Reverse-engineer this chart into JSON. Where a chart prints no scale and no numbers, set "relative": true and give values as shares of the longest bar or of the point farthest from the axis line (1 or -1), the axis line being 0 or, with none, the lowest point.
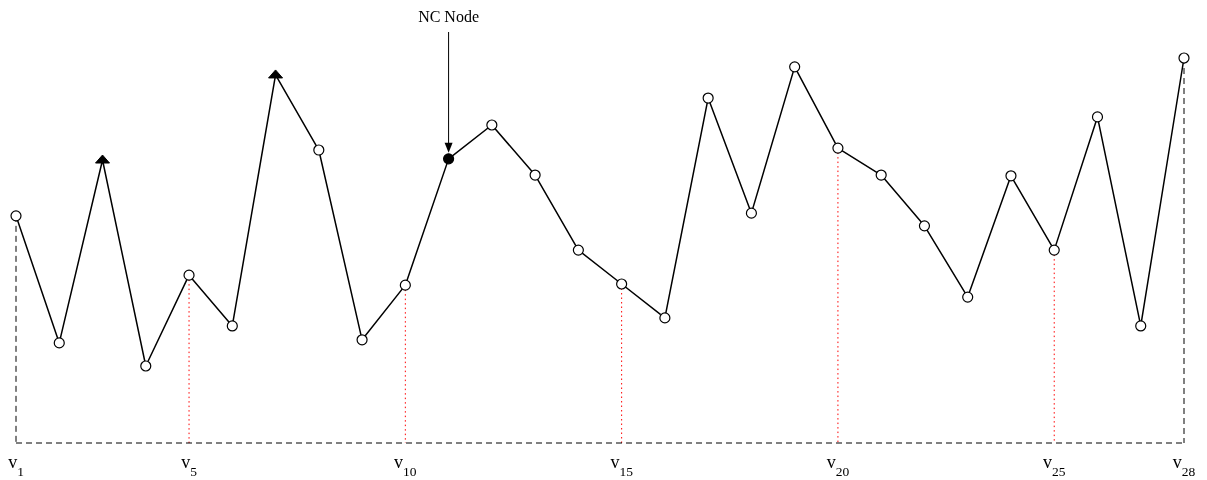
{
  "chart_data": {
    "type": "line",
    "relative": true,
    "categories": [
      "v$_{1}$",
      null,
      null,
      null,
      "v$_{5}$",
      null,
      null,
      null,
      null,
      "v$_{10}$",
      null,
      null,
      null,
      null,
      "v$_{15}$",
      null,
      null,
      null,
      null,
      "v$_{20}$",
      null,
      null,
      null,
      null,
      "v$_{25}$",
      null,
      null,
      "v$_{28}$"
    ],
    "series": [
      {
        "color": "#000000",
        "marker": "none",
        "line_style": "solid",
        "values": [
          0.59,
          0.26,
          0.735,
          0.2,
          0.436,
          0.304,
          0.956,
          0.761,
          0.268,
          0.41,
          0.738,
          0.826,
          0.696,
          0.501,
          0.413,
          0.325,
          0.896,
          0.597,
          0.977,
          0.766,
          0.696,
          0.564,
          0.379,
          0.694,
          0.501,
          0.847,
          0.304,
          1
        ]
      },
      {
        "type": "scatter",
        "marker": "circle",
        "values": [
          0.59,
          0.26,
          null,
          0.2,
          0.436,
          0.304,
          null,
          0.761,
          0.268,
          0.41,
          null,
          0.826,
          0.696,
          0.501,
          0.413,
          0.325,
          0.896,
          0.597,
          0.977,
          0.766,
          0.696,
          0.564,
          0.379,
          0.694,
          0.501,
          0.847,
          0.304,
          1
        ]
      },
      {
        "type": "scatter",
        "marker": "triangle",
        "color": "#000000",
        "values": [
          null,
          null,
          0.735,
          null,
          null,
          null,
          0.956,
          null,
          null,
          null,
          null,
          null,
          null,
          null,
          null,
          null,
          null,
          null,
          null,
          null,
          null,
          null,
          null,
          null,
          null,
          null,
          null,
          null
        ]
      },
      {
        "type": "scatter",
        "marker": "circle",
        "color": "#000000",
        "values": [
          null,
          null,
          null,
          null,
          null,
          null,
          null,
          null,
          null,
          null,
          0.738,
          null,
          null,
          null,
          null,
          null,
          null,
          null,
          null,
          null,
          null,
          null,
          null,
          null,
          null,
          null,
          null,
          null
        ]
      }
    ],
    "annotations": [
      "NC Node"
    ]
  }
}
